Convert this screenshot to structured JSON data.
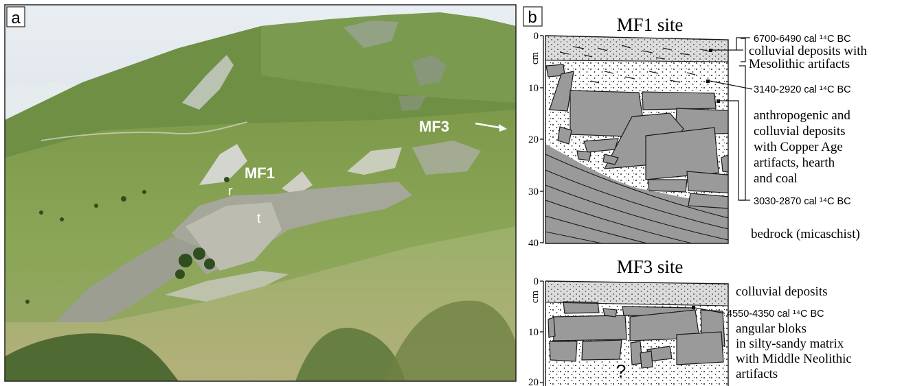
{
  "panel_a": {
    "label": "a",
    "site_labels": {
      "mf1": "MF1",
      "mf3": "MF3",
      "r": "r",
      "t": "t"
    }
  },
  "panel_b": {
    "label": "b",
    "unit": "cm",
    "mf1": {
      "title": "MF1 site",
      "depth_ticks": [
        "0",
        "10",
        "20",
        "30",
        "40"
      ],
      "annotations": {
        "date_top": "6700-6490 cal ¹⁴C BC",
        "colluvial_1": "colluvial deposits with",
        "colluvial_2": "Mesolithic artifacts",
        "date_mid": "3140-2920 cal ¹⁴C BC",
        "anthro_1": "anthropogenic and",
        "anthro_2": "colluvial deposits",
        "anthro_3": "with Copper Age",
        "anthro_4": "artifacts, hearth",
        "anthro_5": "and coal",
        "date_bottom": "3030-2870 cal ¹⁴C BC",
        "bedrock": "bedrock (micaschist)"
      }
    },
    "mf3": {
      "title": "MF3 site",
      "depth_ticks": [
        "0",
        "10",
        "20"
      ],
      "annotations": {
        "colluvial": "colluvial deposits",
        "date": "4550-4350 cal ¹⁴C BC",
        "blocks_1": "angular bloks",
        "blocks_2": "in silty-sandy matrix",
        "blocks_3": "with Middle Neolithic",
        "blocks_4": "artifacts",
        "unknown": "?"
      }
    }
  }
}
